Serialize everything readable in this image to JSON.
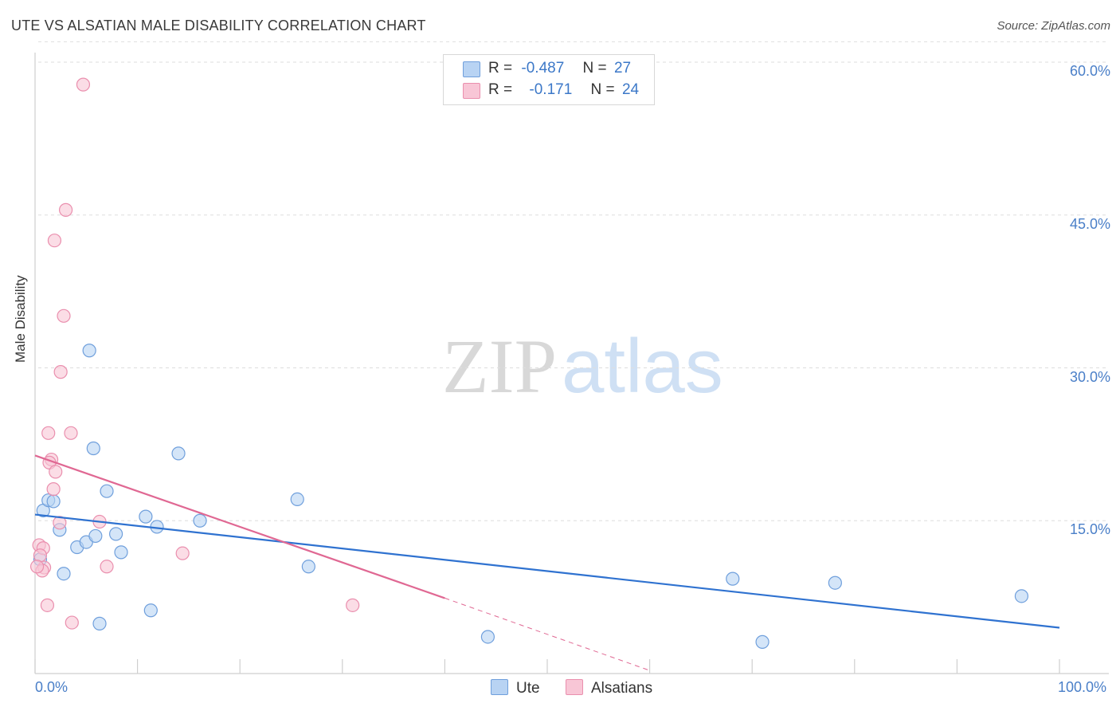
{
  "header": {
    "title": "UTE VS ALSATIAN MALE DISABILITY CORRELATION CHART",
    "source": "Source: ZipAtlas.com"
  },
  "watermark": {
    "zip": "ZIP",
    "atlas": "atlas"
  },
  "legend": {
    "ute": {
      "r_label": "R =",
      "r_value": "-0.487",
      "n_label": "N =",
      "n_value": "27"
    },
    "alsatians": {
      "r_label": "R =",
      "r_value": "-0.171",
      "n_label": "N =",
      "n_value": "24"
    }
  },
  "bottom_legend": {
    "ute": "Ute",
    "alsatians": "Alsatians"
  },
  "colors": {
    "ute_fill": "#b8d3f3",
    "ute_stroke": "#6f9fdc",
    "ute_line": "#2f72d0",
    "als_fill": "#f8c6d6",
    "als_stroke": "#ea8fae",
    "als_line": "#e06893",
    "grid": "#dedede",
    "tick_text": "#4a7fc8"
  },
  "chart_data": {
    "type": "scatter",
    "title": "UTE VS ALSATIAN MALE DISABILITY CORRELATION CHART",
    "xlabel": "",
    "ylabel": "Male Disability",
    "xlim": [
      0,
      100
    ],
    "ylim": [
      0,
      62
    ],
    "x_tick_labels": [
      "0.0%",
      "100.0%"
    ],
    "y_ticks": [
      15,
      30,
      45,
      60
    ],
    "y_tick_labels": [
      "15.0%",
      "30.0%",
      "45.0%",
      "60.0%"
    ],
    "grid": true,
    "legend_position": "top-center",
    "series": [
      {
        "name": "Ute",
        "points": [
          [
            0.8,
            16.0
          ],
          [
            1.3,
            17.0
          ],
          [
            1.8,
            16.9
          ],
          [
            2.4,
            14.1
          ],
          [
            2.8,
            9.8
          ],
          [
            5.3,
            31.7
          ],
          [
            5.7,
            22.1
          ],
          [
            4.1,
            12.4
          ],
          [
            5.0,
            12.9
          ],
          [
            5.9,
            13.5
          ],
          [
            7.0,
            17.9
          ],
          [
            7.9,
            13.7
          ],
          [
            8.4,
            11.9
          ],
          [
            10.8,
            15.4
          ],
          [
            11.3,
            6.2
          ],
          [
            11.9,
            14.4
          ],
          [
            14.0,
            21.6
          ],
          [
            16.1,
            15.0
          ],
          [
            6.3,
            4.9
          ],
          [
            25.6,
            17.1
          ],
          [
            26.7,
            10.5
          ],
          [
            44.2,
            3.6
          ],
          [
            68.1,
            9.3
          ],
          [
            71.0,
            3.1
          ],
          [
            78.1,
            8.9
          ],
          [
            96.3,
            7.6
          ],
          [
            0.5,
            11.2
          ]
        ]
      },
      {
        "name": "Alsatians",
        "points": [
          [
            4.7,
            57.8
          ],
          [
            3.0,
            45.5
          ],
          [
            1.9,
            42.5
          ],
          [
            2.8,
            35.1
          ],
          [
            2.5,
            29.6
          ],
          [
            1.3,
            23.6
          ],
          [
            3.5,
            23.6
          ],
          [
            1.6,
            21.0
          ],
          [
            1.4,
            20.7
          ],
          [
            2.0,
            19.8
          ],
          [
            1.8,
            18.1
          ],
          [
            2.4,
            14.8
          ],
          [
            6.3,
            14.9
          ],
          [
            0.4,
            12.6
          ],
          [
            0.8,
            12.3
          ],
          [
            0.5,
            11.6
          ],
          [
            0.9,
            10.4
          ],
          [
            0.7,
            10.1
          ],
          [
            7.0,
            10.5
          ],
          [
            14.4,
            11.8
          ],
          [
            1.2,
            6.7
          ],
          [
            3.6,
            5.0
          ],
          [
            31.0,
            6.7
          ],
          [
            0.2,
            10.5
          ]
        ]
      }
    ],
    "trend_lines": [
      {
        "series": "Ute",
        "x": [
          0,
          100
        ],
        "y": [
          15.6,
          4.5
        ],
        "style": "solid"
      },
      {
        "series": "Alsatians",
        "x": [
          0,
          40
        ],
        "y": [
          21.4,
          7.4
        ],
        "style": "solid"
      },
      {
        "series": "Alsatians",
        "x": [
          40,
          60
        ],
        "y": [
          7.4,
          0.3
        ],
        "style": "dashed"
      }
    ]
  }
}
